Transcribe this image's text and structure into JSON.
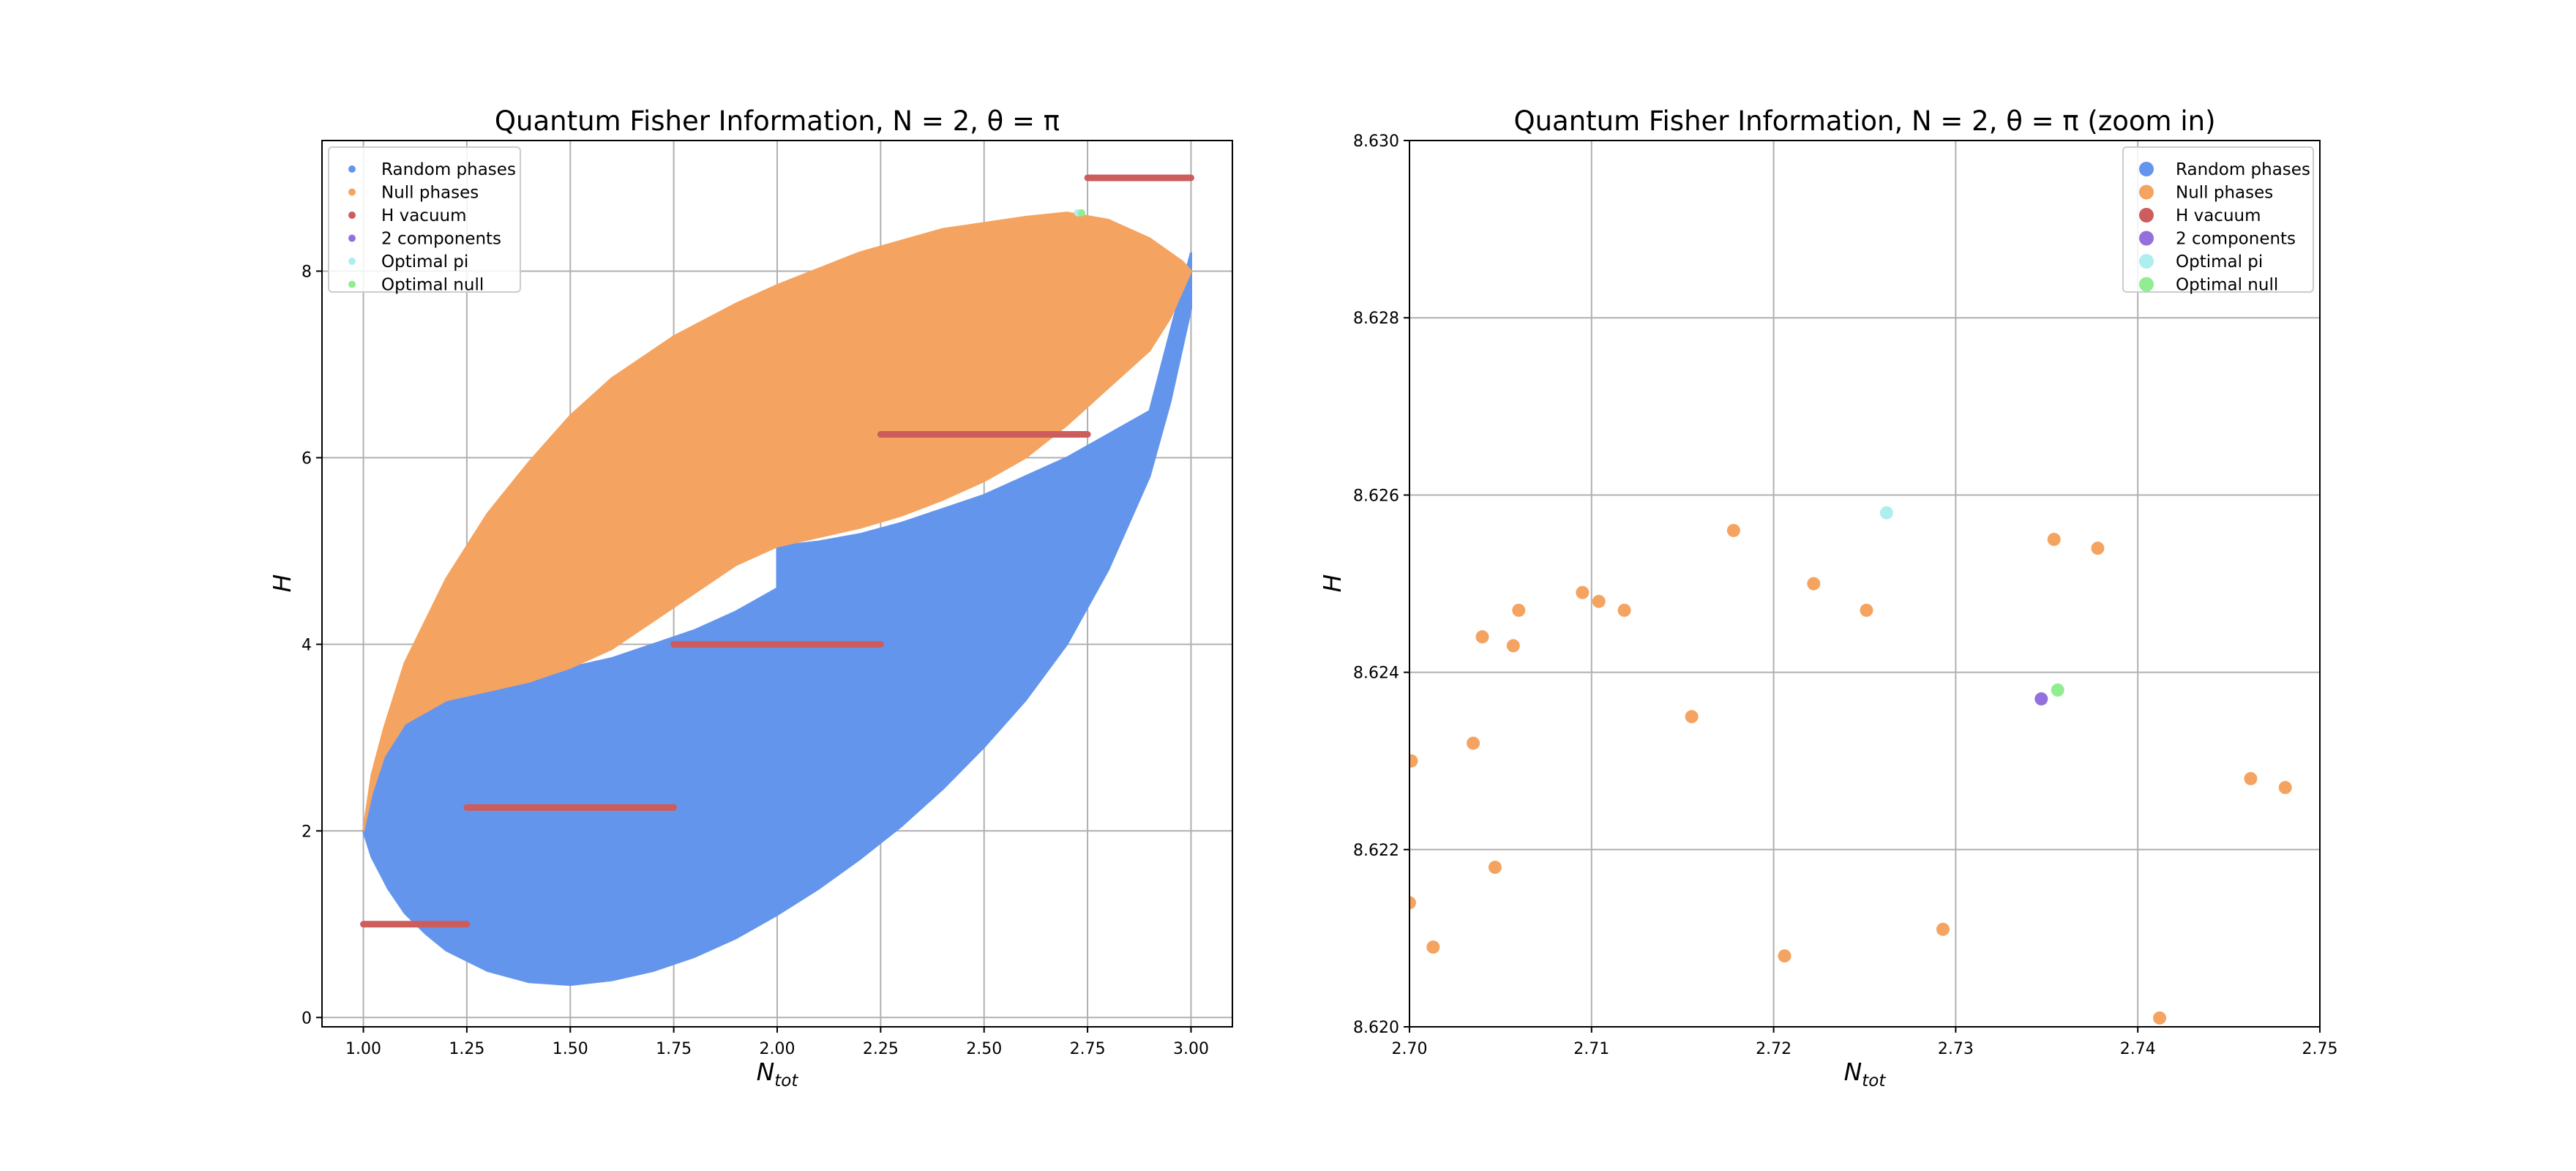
{
  "chart_data": [
    {
      "type": "scatter",
      "title": "Quantum Fisher Information, N = 2, θ = π",
      "xlabel": "N_tot",
      "ylabel": "H",
      "xlim": [
        0.9,
        3.1
      ],
      "ylim": [
        -0.1,
        9.4
      ],
      "xticks": [
        "1.00",
        "1.25",
        "1.50",
        "1.75",
        "2.00",
        "2.25",
        "2.50",
        "2.75",
        "3.00"
      ],
      "yticks": [
        "0",
        "2",
        "4",
        "6",
        "8"
      ],
      "grid": true,
      "legend_position": "top-left",
      "series": [
        {
          "name": "Random phases",
          "color": "#6495ed",
          "kind": "region",
          "outline": [
            [
              1.0,
              2.0
            ],
            [
              1.02,
              1.72
            ],
            [
              1.06,
              1.38
            ],
            [
              1.1,
              1.12
            ],
            [
              1.15,
              0.9
            ],
            [
              1.2,
              0.72
            ],
            [
              1.3,
              0.5
            ],
            [
              1.4,
              0.38
            ],
            [
              1.5,
              0.35
            ],
            [
              1.6,
              0.4
            ],
            [
              1.7,
              0.5
            ],
            [
              1.8,
              0.65
            ],
            [
              1.9,
              0.85
            ],
            [
              2.0,
              1.1
            ],
            [
              2.1,
              1.38
            ],
            [
              2.2,
              1.7
            ],
            [
              2.3,
              2.05
            ],
            [
              2.4,
              2.45
            ],
            [
              2.5,
              2.9
            ],
            [
              2.6,
              3.4
            ],
            [
              2.7,
              4.0
            ],
            [
              2.8,
              4.8
            ],
            [
              2.9,
              5.8
            ],
            [
              2.95,
              6.6
            ],
            [
              3.0,
              7.6
            ],
            [
              3.0,
              8.2
            ],
            [
              2.9,
              6.5
            ],
            [
              2.8,
              6.25
            ],
            [
              2.7,
              6.0
            ],
            [
              2.6,
              5.8
            ],
            [
              2.5,
              5.6
            ],
            [
              2.4,
              5.45
            ],
            [
              2.3,
              5.3
            ],
            [
              2.2,
              5.18
            ],
            [
              2.1,
              5.1
            ],
            [
              2.0,
              5.05
            ],
            [
              2.0,
              4.6
            ],
            [
              1.9,
              4.35
            ],
            [
              1.8,
              4.15
            ],
            [
              1.7,
              4.0
            ],
            [
              1.6,
              3.85
            ],
            [
              1.5,
              3.75
            ],
            [
              1.4,
              3.65
            ],
            [
              1.3,
              3.55
            ],
            [
              1.2,
              3.45
            ],
            [
              1.1,
              3.2
            ],
            [
              1.05,
              2.8
            ],
            [
              1.02,
              2.4
            ]
          ]
        },
        {
          "name": "Null phases",
          "color": "#f4a460",
          "kind": "region",
          "outline": [
            [
              1.0,
              2.0
            ],
            [
              1.02,
              2.6
            ],
            [
              1.05,
              3.1
            ],
            [
              1.1,
              3.8
            ],
            [
              1.2,
              4.7
            ],
            [
              1.3,
              5.4
            ],
            [
              1.4,
              5.95
            ],
            [
              1.5,
              6.45
            ],
            [
              1.6,
              6.85
            ],
            [
              1.75,
              7.3
            ],
            [
              1.9,
              7.65
            ],
            [
              2.0,
              7.85
            ],
            [
              2.2,
              8.2
            ],
            [
              2.4,
              8.45
            ],
            [
              2.6,
              8.58
            ],
            [
              2.7,
              8.626
            ],
            [
              2.8,
              8.55
            ],
            [
              2.9,
              8.35
            ],
            [
              2.98,
              8.1
            ],
            [
              3.0,
              8.0
            ],
            [
              2.95,
              7.5
            ],
            [
              2.9,
              7.15
            ],
            [
              2.8,
              6.75
            ],
            [
              2.7,
              6.35
            ],
            [
              2.6,
              6.0
            ],
            [
              2.5,
              5.75
            ],
            [
              2.4,
              5.55
            ],
            [
              2.3,
              5.38
            ],
            [
              2.2,
              5.25
            ],
            [
              2.1,
              5.15
            ],
            [
              2.0,
              5.05
            ],
            [
              1.9,
              4.85
            ],
            [
              1.8,
              4.55
            ],
            [
              1.7,
              4.25
            ],
            [
              1.6,
              3.95
            ],
            [
              1.5,
              3.75
            ],
            [
              1.4,
              3.6
            ],
            [
              1.3,
              3.5
            ],
            [
              1.2,
              3.4
            ],
            [
              1.1,
              3.15
            ],
            [
              1.05,
              2.8
            ],
            [
              1.02,
              2.4
            ]
          ]
        },
        {
          "name": "H vacuum",
          "color": "#cd5c5c",
          "kind": "segments",
          "segments": [
            {
              "x": [
                1.0,
                1.25
              ],
              "y": 1.0
            },
            {
              "x": [
                1.25,
                1.75
              ],
              "y": 2.25
            },
            {
              "x": [
                1.75,
                2.25
              ],
              "y": 4.0
            },
            {
              "x": [
                2.25,
                2.75
              ],
              "y": 6.25
            },
            {
              "x": [
                2.75,
                3.0
              ],
              "y": 9.0
            }
          ]
        },
        {
          "name": "2 components",
          "color": "#9370db",
          "kind": "points",
          "points": [
            [
              2.7347,
              8.6237
            ]
          ]
        },
        {
          "name": "Optimal pi",
          "color": "#afeeee",
          "kind": "points",
          "points": [
            [
              2.7262,
              8.6258
            ]
          ]
        },
        {
          "name": "Optimal null",
          "color": "#90ee90",
          "kind": "points",
          "points": [
            [
              2.7356,
              8.6238
            ]
          ]
        }
      ]
    },
    {
      "type": "scatter",
      "title": "Quantum Fisher Information, N = 2, θ = π (zoom in)",
      "xlabel": "N_tot",
      "ylabel": "H",
      "xlim": [
        2.7,
        2.75
      ],
      "ylim": [
        8.62,
        8.63
      ],
      "xticks": [
        "2.70",
        "2.71",
        "2.72",
        "2.73",
        "2.74",
        "2.75"
      ],
      "yticks": [
        "8.620",
        "8.622",
        "8.624",
        "8.626",
        "8.628",
        "8.630"
      ],
      "grid": true,
      "legend_position": "top-right",
      "series": [
        {
          "name": "Random phases",
          "color": "#6495ed",
          "points": []
        },
        {
          "name": "Null phases",
          "color": "#f4a460",
          "points": [
            [
              2.7001,
              8.623
            ],
            [
              2.7,
              8.6214
            ],
            [
              2.7013,
              8.6209
            ],
            [
              2.7035,
              8.6232
            ],
            [
              2.704,
              8.6244
            ],
            [
              2.7047,
              8.6218
            ],
            [
              2.7057,
              8.6243
            ],
            [
              2.706,
              8.6247
            ],
            [
              2.7095,
              8.6249
            ],
            [
              2.7104,
              8.6248
            ],
            [
              2.7118,
              8.6247
            ],
            [
              2.7155,
              8.6235
            ],
            [
              2.7178,
              8.6256
            ],
            [
              2.7206,
              8.6208
            ],
            [
              2.7222,
              8.625
            ],
            [
              2.7251,
              8.6247
            ],
            [
              2.7293,
              8.6211
            ],
            [
              2.7354,
              8.6255
            ],
            [
              2.7378,
              8.6254
            ],
            [
              2.7412,
              8.6201
            ],
            [
              2.7462,
              8.6228
            ],
            [
              2.7481,
              8.6227
            ]
          ]
        },
        {
          "name": "H vacuum",
          "color": "#cd5c5c",
          "points": []
        },
        {
          "name": "2 components",
          "color": "#9370db",
          "points": [
            [
              2.7347,
              8.6237
            ]
          ]
        },
        {
          "name": "Optimal pi",
          "color": "#afeeee",
          "points": [
            [
              2.7262,
              8.6258
            ]
          ]
        },
        {
          "name": "Optimal null",
          "color": "#90ee90",
          "points": [
            [
              2.7356,
              8.6238
            ]
          ]
        }
      ]
    }
  ]
}
